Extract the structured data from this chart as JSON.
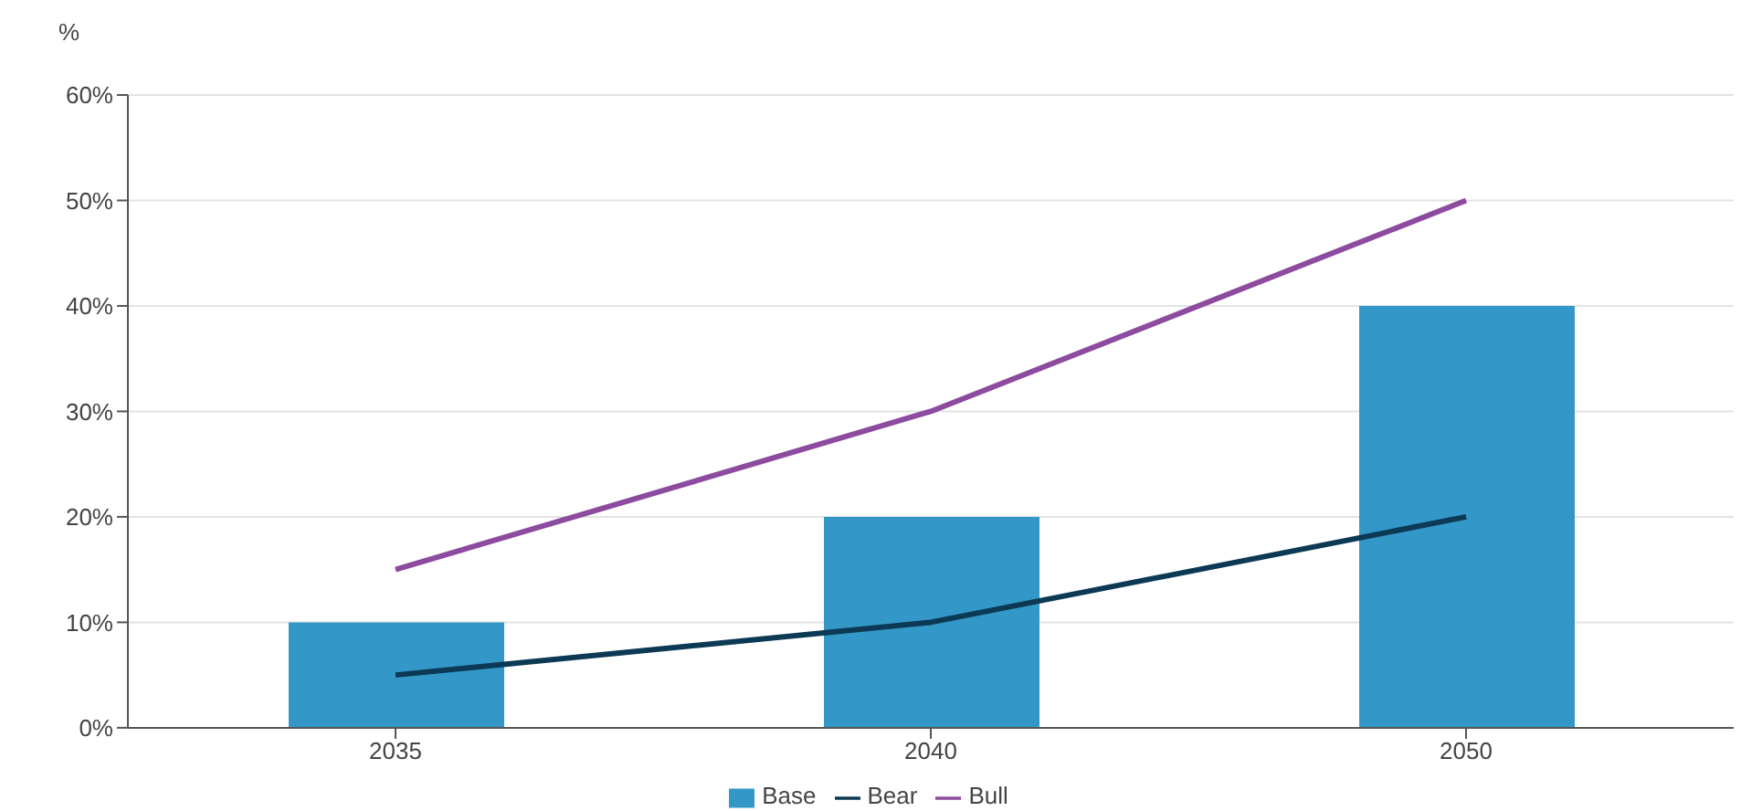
{
  "chart_data": {
    "type": "bar",
    "ylabel": "%",
    "categories": [
      "2035",
      "2040",
      "2050"
    ],
    "series": [
      {
        "name": "Base",
        "color": "#3398c8",
        "values": [
          10,
          20,
          40
        ]
      },
      {
        "name": "Bear",
        "type": "line",
        "color": "#0c3a55",
        "values": [
          5,
          10,
          20
        ]
      },
      {
        "name": "Bull",
        "type": "line",
        "color": "#8c4b9e",
        "values": [
          15,
          30,
          50
        ]
      }
    ],
    "ylim": [
      0,
      60
    ],
    "yticks": [
      {
        "value": 0,
        "label": "0%"
      },
      {
        "value": 10,
        "label": "10%"
      },
      {
        "value": 20,
        "label": "20%"
      },
      {
        "value": 30,
        "label": "30%"
      },
      {
        "value": 40,
        "label": "40%"
      },
      {
        "value": 50,
        "label": "50%"
      },
      {
        "value": 60,
        "label": "60%"
      }
    ],
    "grid": "y",
    "legend": "bottom",
    "marker": "none"
  }
}
